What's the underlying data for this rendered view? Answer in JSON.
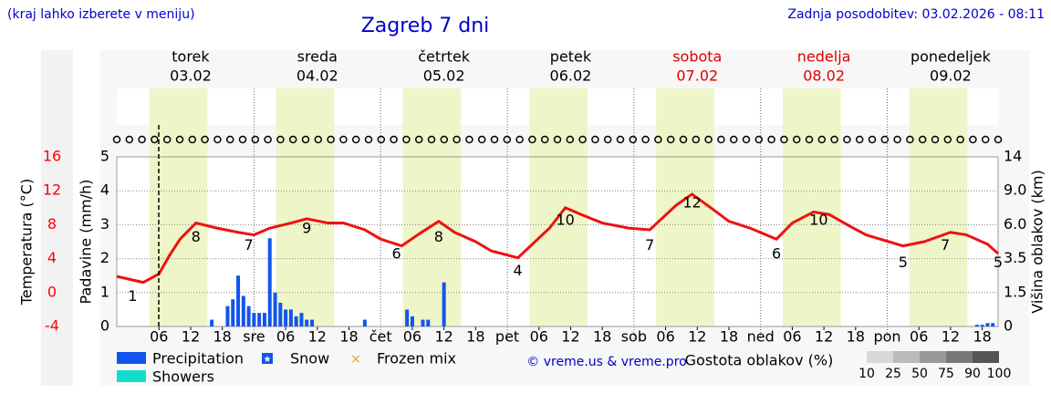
{
  "header": {
    "location_hint": "(kraj lahko izberete v meniju)",
    "updated": "Zadnja posodobitev: 03.02.2026 - 08:11"
  },
  "chart_data": {
    "type": "meteogram",
    "title": "Zagreb 7 dni",
    "ylabel": "Padavine (mm/h)",
    "y2label": "Temperatura (°C)",
    "y3label": "Višina oblakov (km)",
    "days": [
      {
        "name": "torek",
        "date": "03.02",
        "color": "#000000"
      },
      {
        "name": "sreda",
        "date": "04.02",
        "color": "#000000"
      },
      {
        "name": "četrtek",
        "date": "05.02",
        "color": "#000000"
      },
      {
        "name": "petek",
        "date": "06.02",
        "color": "#000000"
      },
      {
        "name": "sobota",
        "date": "07.02",
        "color": "#dd0000"
      },
      {
        "name": "nedelja",
        "date": "08.02",
        "color": "#dd0000"
      },
      {
        "name": "ponedeljek",
        "date": "09.02",
        "color": "#000000"
      }
    ],
    "xlim": [
      -2,
      165
    ],
    "xticks": [
      {
        "value": 6,
        "label": "06"
      },
      {
        "value": 12,
        "label": "12"
      },
      {
        "value": 18,
        "label": "18"
      },
      {
        "value": 24,
        "label": "sre"
      },
      {
        "value": 30,
        "label": "06"
      },
      {
        "value": 36,
        "label": "12"
      },
      {
        "value": 42,
        "label": "18"
      },
      {
        "value": 48,
        "label": "čet"
      },
      {
        "value": 54,
        "label": "06"
      },
      {
        "value": 60,
        "label": "12"
      },
      {
        "value": 66,
        "label": "18"
      },
      {
        "value": 72,
        "label": "pet"
      },
      {
        "value": 78,
        "label": "06"
      },
      {
        "value": 84,
        "label": "12"
      },
      {
        "value": 90,
        "label": "18"
      },
      {
        "value": 96,
        "label": "sob"
      },
      {
        "value": 102,
        "label": "06"
      },
      {
        "value": 108,
        "label": "12"
      },
      {
        "value": 114,
        "label": "18"
      },
      {
        "value": 120,
        "label": "ned"
      },
      {
        "value": 126,
        "label": "06"
      },
      {
        "value": 132,
        "label": "12"
      },
      {
        "value": 138,
        "label": "18"
      },
      {
        "value": 144,
        "label": "pon"
      },
      {
        "value": 150,
        "label": "06"
      },
      {
        "value": 156,
        "label": "12"
      },
      {
        "value": 162,
        "label": "18"
      }
    ],
    "ylim": [
      0,
      5
    ],
    "yticks": [
      0,
      1,
      2,
      3,
      4,
      5
    ],
    "y2lim": [
      -4,
      16
    ],
    "y2ticks": [
      -4,
      0,
      4,
      8,
      12,
      16
    ],
    "y3ticks": [
      0,
      1.5,
      3.5,
      {
        "value": 6,
        "label": "6.0"
      },
      {
        "value": 9,
        "label": "9.0"
      },
      14
    ],
    "series": [
      {
        "name": "Temperatura",
        "axis": "y2",
        "color": "#ee1111",
        "x": [
          -2,
          3,
          6,
          8,
          10,
          13,
          17,
          21,
          24,
          27,
          31,
          34,
          38,
          41,
          45,
          48,
          52,
          55,
          59,
          62,
          66,
          69,
          74,
          80,
          83,
          86,
          90,
          95,
          99,
          104,
          107,
          111,
          114,
          118,
          123,
          126,
          130,
          133,
          137,
          140,
          147,
          151,
          156,
          159,
          163,
          165
        ],
        "values": [
          1.9,
          1.2,
          2.2,
          4.4,
          6.3,
          8.2,
          7.6,
          7.1,
          6.8,
          7.6,
          8.2,
          8.7,
          8.2,
          8.2,
          7.4,
          6.3,
          5.5,
          6.8,
          8.4,
          7.1,
          6,
          4.9,
          4.1,
          7.6,
          10,
          9.2,
          8.2,
          7.6,
          7.4,
          10.3,
          11.6,
          9.8,
          8.4,
          7.6,
          6.3,
          8.2,
          9.5,
          9.2,
          7.8,
          6.8,
          5.5,
          6,
          7.1,
          6.8,
          5.7,
          4.6
        ]
      },
      {
        "name": "Precipitation",
        "color": "#1155ee",
        "x": [
          16,
          19,
          20,
          21,
          22,
          23,
          24,
          25,
          26,
          27,
          28,
          29,
          30,
          31,
          32,
          33,
          34,
          35,
          45,
          53,
          54,
          56,
          57,
          60,
          161,
          162,
          163,
          164
        ],
        "values": [
          0.2,
          0.6,
          0.8,
          1.5,
          0.9,
          0.6,
          0.4,
          0.4,
          0.4,
          2.6,
          1.0,
          0.7,
          0.5,
          0.5,
          0.3,
          0.4,
          0.2,
          0.2,
          0.2,
          0.5,
          0.3,
          0.2,
          0.2,
          1.3,
          0.05,
          0.05,
          0.1,
          0.1
        ]
      }
    ],
    "temp_labels": {
      "x": [
        1,
        13,
        23,
        34,
        51,
        59,
        74,
        83,
        99,
        107,
        123,
        131,
        147,
        155,
        165
      ],
      "values": [
        1,
        8,
        7,
        9,
        6,
        8,
        4,
        10,
        7,
        12,
        6,
        10,
        5,
        7,
        5
      ]
    },
    "legend": [
      "Precipitation",
      "Snow",
      "Frozen mix",
      "Showers"
    ],
    "credit": "© vreme.us & vreme.pro",
    "density_title": "Gostota oblakov (%)",
    "density_scale": [
      10,
      25,
      50,
      75,
      90,
      100
    ]
  }
}
